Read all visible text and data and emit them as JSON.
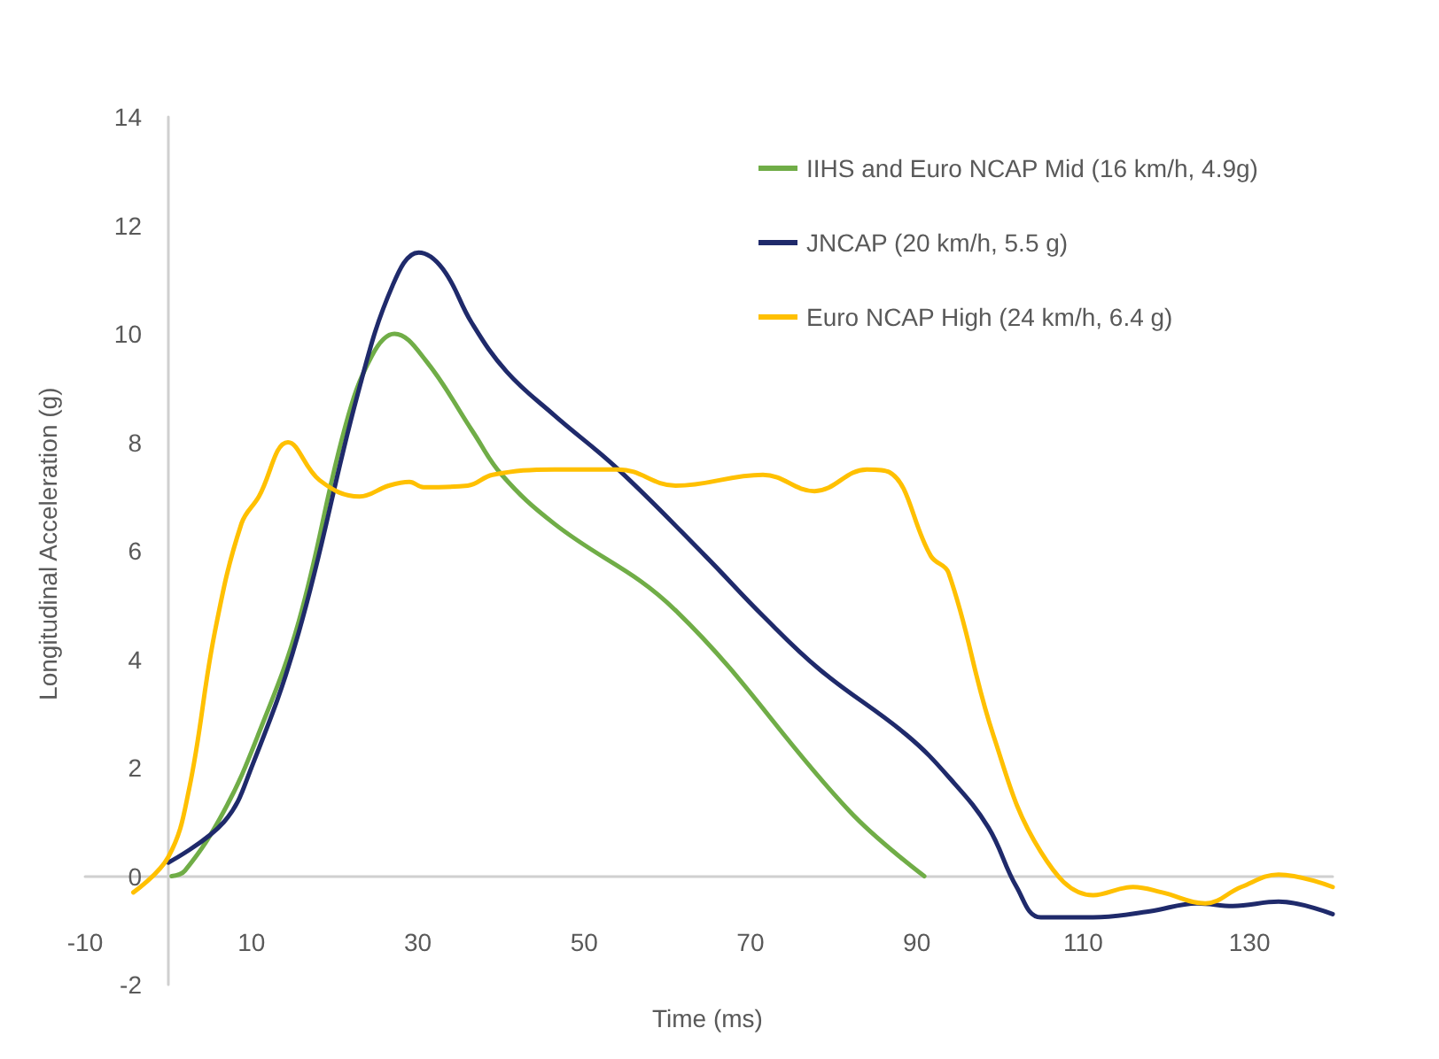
{
  "chart_data": {
    "type": "line",
    "xlabel": "Time (ms)",
    "ylabel": "Longitudinal Acceleration (g)",
    "xlim": [
      -10,
      140
    ],
    "xticks": [
      -10,
      10,
      30,
      50,
      70,
      90,
      110,
      130
    ],
    "ylim": [
      -2,
      14
    ],
    "yticks": [
      -2,
      0,
      2,
      4,
      6,
      8,
      10,
      12,
      14
    ],
    "grid": false,
    "legend": "top right",
    "marker": "none",
    "line_style": "solid",
    "series": [
      {
        "name": "IIHS and Euro NCAP Mid (16 km/h, 4.9g)",
        "color": "#70ad47",
        "x": [
          0.4,
          2,
          6.7,
          10.8,
          15.7,
          21.3,
          24.5,
          27.2,
          31,
          36.6,
          40.1,
          46.4,
          61,
          81.9,
          90.9
        ],
        "values": [
          0,
          0.1,
          1.2,
          2.6,
          4.7,
          8.3,
          9.6,
          10,
          9.5,
          8.2,
          7.4,
          6.5,
          4.9,
          1.2,
          0
        ]
      },
      {
        "name": "JNCAP (20 km/h, 5.5 g)",
        "color": "#1f2a6b",
        "x": [
          0,
          6.7,
          10,
          15.7,
          22.8,
          27,
          30.1,
          33,
          36.5,
          40.7,
          46.4,
          54.1,
          64.6,
          71.5,
          78.4,
          88.8,
          94,
          98.6,
          102,
          104.9,
          111.2,
          118,
          123.7,
          128,
          133.5,
          140
        ],
        "values": [
          0.25,
          1,
          2,
          4.5,
          8.9,
          10.9,
          11.5,
          11.2,
          10.2,
          9.3,
          8.5,
          7.5,
          5.9,
          4.8,
          3.8,
          2.6,
          1.8,
          0.9,
          -0.2,
          -0.76,
          -0.76,
          -0.65,
          -0.5,
          -0.55,
          -0.47,
          -0.7
        ]
      },
      {
        "name": "Euro NCAP High (24 km/h, 6.4 g)",
        "color": "#ffc000",
        "x": [
          -4.2,
          0,
          2.5,
          5.6,
          8.8,
          10.9,
          14.4,
          18.2,
          23,
          26.5,
          29,
          30.7,
          36,
          39,
          46.4,
          54.1,
          61,
          71.5,
          77.7,
          84,
          86.7,
          91.7,
          93.8,
          99.2,
          104.9,
          111.2,
          116,
          119.5,
          124.7,
          129,
          133.5,
          140
        ],
        "values": [
          -0.3,
          0.35,
          1.6,
          4.5,
          6.5,
          7,
          8,
          7.3,
          7,
          7.2,
          7.27,
          7.17,
          7.2,
          7.4,
          7.5,
          7.5,
          7.2,
          7.4,
          7.1,
          7.5,
          7.45,
          5.9,
          5.6,
          2.6,
          0.45,
          -0.35,
          -0.2,
          -0.3,
          -0.5,
          -0.2,
          0.03,
          -0.2
        ]
      }
    ]
  }
}
